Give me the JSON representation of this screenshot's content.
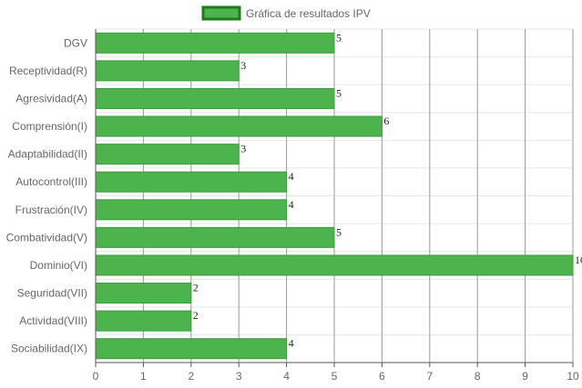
{
  "chart_data": {
    "type": "bar",
    "orientation": "horizontal",
    "title": "",
    "xlabel": "",
    "ylabel": "",
    "legend": {
      "position": "top-center",
      "entries": [
        "Gráfica de resultados IPV"
      ]
    },
    "categories": [
      "DGV",
      "Receptividad(R)",
      "Agresividad(A)",
      "Comprensión(I)",
      "Adaptabilidad(II)",
      "Autocontrol(III)",
      "Frustración(IV)",
      "Combatividad(V)",
      "Dominio(VI)",
      "Seguridad(VII)",
      "Actividad(VIII)",
      "Sociabilidad(IX)"
    ],
    "series": [
      {
        "name": "Gráfica de resultados IPV",
        "values": [
          5,
          3,
          5,
          6,
          3,
          4,
          4,
          5,
          10,
          2,
          2,
          4
        ]
      }
    ],
    "xlim": [
      0,
      10
    ],
    "x_ticks": [
      "0",
      "1",
      "2",
      "3",
      "4",
      "5",
      "6",
      "7",
      "8",
      "9",
      "10"
    ],
    "grid": true,
    "colors": {
      "bar_fill": "#4db34d",
      "bar_border": "#3c9c3c",
      "legend_fill": "#4db34d",
      "legend_border": "#1e7b1e",
      "grid_vertical": "#9a9a9a",
      "grid_horizontal": "#e6e6e6",
      "axis": "#555555",
      "label_text": "#666666",
      "value_text": "#222222"
    },
    "show_value_labels": true
  }
}
